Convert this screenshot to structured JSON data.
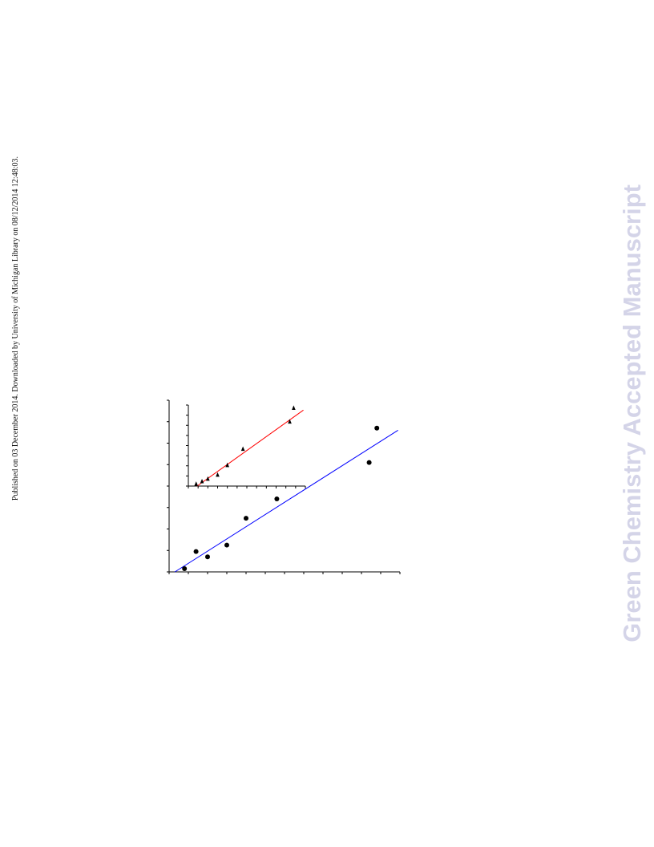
{
  "side_note": "Published on 03 December 2014. Downloaded by University of Michigan Library on 08/12/2014 12:48:03.",
  "watermark": {
    "text": "Green Chemistry Accepted Manuscript",
    "color": "#d4d4e8"
  },
  "chart_data": [
    {
      "type": "scatter",
      "title": "",
      "xlabel": "",
      "ylabel": "",
      "xlim": [
        0,
        12
      ],
      "ylim": [
        0,
        8
      ],
      "x_ticks": [
        0,
        1,
        2,
        3,
        4,
        5,
        6,
        7,
        8,
        9,
        10,
        11,
        12
      ],
      "y_ticks": [
        0,
        1,
        2,
        3,
        4,
        5,
        6,
        7,
        8
      ],
      "grid": false,
      "series": [
        {
          "marker": "circle",
          "color": "#000000",
          "x": [
            0.8,
            1.4,
            2.0,
            3.0,
            4.0,
            5.6,
            10.4,
            10.8
          ],
          "y": [
            0.15,
            0.95,
            0.7,
            1.25,
            2.5,
            3.4,
            5.1,
            6.7
          ]
        }
      ],
      "fit_line": {
        "color": "#0000ff",
        "x": [
          0.3,
          11.9
        ],
        "y": [
          0.0,
          6.6
        ]
      }
    },
    {
      "type": "scatter",
      "title": "",
      "xlabel": "",
      "ylabel": "",
      "xlim": [
        0,
        12
      ],
      "ylim": [
        0,
        8
      ],
      "x_ticks": [
        0,
        1,
        2,
        3,
        4,
        5,
        6,
        7,
        8,
        9,
        10,
        11,
        12
      ],
      "y_ticks": [
        0,
        1,
        2,
        3,
        4,
        5,
        6,
        7,
        8
      ],
      "grid": false,
      "series": [
        {
          "marker": "triangle",
          "color": "#000000",
          "x": [
            0.8,
            1.4,
            2.0,
            3.0,
            4.0,
            5.6,
            10.4,
            10.8
          ],
          "y": [
            0.15,
            0.4,
            0.65,
            1.05,
            2.0,
            3.6,
            6.3,
            7.65
          ]
        }
      ],
      "fit_line": {
        "color": "#ff0000",
        "x": [
          0.9,
          11.8
        ],
        "y": [
          0.0,
          7.5
        ]
      }
    }
  ]
}
